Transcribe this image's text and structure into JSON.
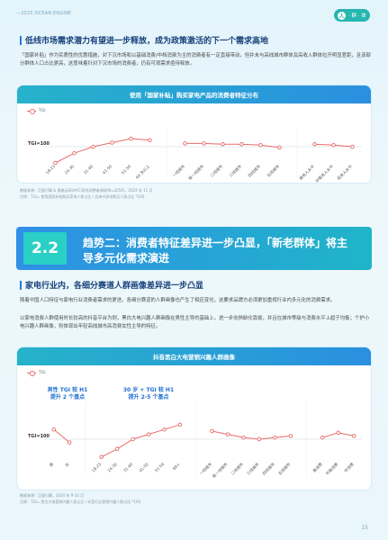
{
  "header": {
    "brand": "—2025 OCEAN ENGINE",
    "pill_icon": "人",
    "pill_text": "· 群 · 体"
  },
  "section1": {
    "title": "低线市场需求潜力有望进一步释放，成为政策激活的下一个需求高地",
    "paragraph": "「国家补贴」作为实质性的优惠措施，对下沉市场和以基础消费/中档消费为主的消费者有一定直接带动，但并未与高线城市群体及高收入群体拉开明显差距，且该部分群体人口占比更高，这意味着针对下沉市场的消费者，仍有可观需求亟待释放。"
  },
  "chart1": {
    "header": "使用「国家补贴」购买家电产品的消费者特征分布",
    "legend": "TGI",
    "baseline_label": "TGI=100",
    "source": "数据来源：巨量引擎 & 奥维云网(AVC)家电消费者调研(N=2050)，2024 年 11 月",
    "note": "注释：TGI= 使用国家补贴购买家电人群占比 / 总体中家电购买人群占比 *100"
  },
  "chart2": {
    "header": "抖音黑白大电营销兴趣人群画像",
    "legend": "TGI",
    "baseline_label": "TGI=100",
    "annot_left": "男性 TGI 较 H1\n提升 2 个基点",
    "annot_right": "30 岁 + TGI 较 H1\n提升 2-5 个基点",
    "source": "数据来源：巨量引擎，2024 年 9-10 月",
    "note": "注释：TGI= 黑白大电营销兴趣人群占比 / 抖音行业营销兴趣人群占比 *100"
  },
  "section2": {
    "number": "2.2",
    "banner": "趋势二：消费者特征差异进一步凸显，「新老群体」将主导多元化需求演进",
    "title": "家电行业内，各细分赛道人群画像差异进一步凸显",
    "paragraph1": "随着中国人口特征与家电行业消费者需求的更迭，各细分赛道的人群画像也产生了相应变化，这要求品牌方必须更加重视行业内多元化的消费需求。",
    "paragraph2": "以家电消费人群使用时长较高的抖音平台为例，黑白大电兴趣人群画像在男性主导的基础上，进一步向熟龄化靠拢，并且在城市等级与消费水平上趋于均衡；个护小电兴趣人群画像，则体现出年轻高线城市高消费女性主导的特征。"
  },
  "page_number": "15",
  "chart_data": [
    {
      "type": "line",
      "title": "使用「国家补贴」购买家电产品的消费者特征分布",
      "series": [
        {
          "name": "TGI"
        }
      ],
      "baseline": 100,
      "groups": [
        {
          "categories": [
            "18-23",
            "24-30",
            "31-40",
            "41-50",
            "51-59",
            "60 及以上"
          ],
          "values": [
            80,
            92,
            100,
            105,
            110,
            108
          ]
        },
        {
          "categories": [
            "一线城市",
            "新一线城市",
            "二线城市",
            "三线城市",
            "四线城市",
            "五线城市"
          ],
          "values": [
            104,
            104,
            103,
            103,
            102,
            99
          ]
        },
        {
          "categories": [
            "高收入水平",
            "中等收入水平",
            "低收入水平"
          ],
          "values": [
            103,
            102,
            100
          ]
        }
      ]
    },
    {
      "type": "line",
      "title": "抖音黑白大电营销兴趣人群画像",
      "series": [
        {
          "name": "TGI"
        }
      ],
      "baseline": 100,
      "groups": [
        {
          "categories": [
            "男",
            "女"
          ],
          "values": [
            112,
            96
          ]
        },
        {
          "categories": [
            "18-23",
            "24-30",
            "31-40",
            "41-50",
            "51-59",
            "60+"
          ],
          "values": [
            78,
            88,
            100,
            106,
            112,
            118
          ]
        },
        {
          "categories": [
            "一线城市",
            "新一线城市",
            "二线城市",
            "三线城市",
            "四线城市",
            "五线城市"
          ],
          "values": [
            110,
            106,
            102,
            100,
            102,
            104
          ]
        },
        {
          "categories": [
            "高消费",
            "中高消费",
            "中消费"
          ],
          "values": [
            102,
            108,
            104
          ]
        }
      ]
    }
  ]
}
